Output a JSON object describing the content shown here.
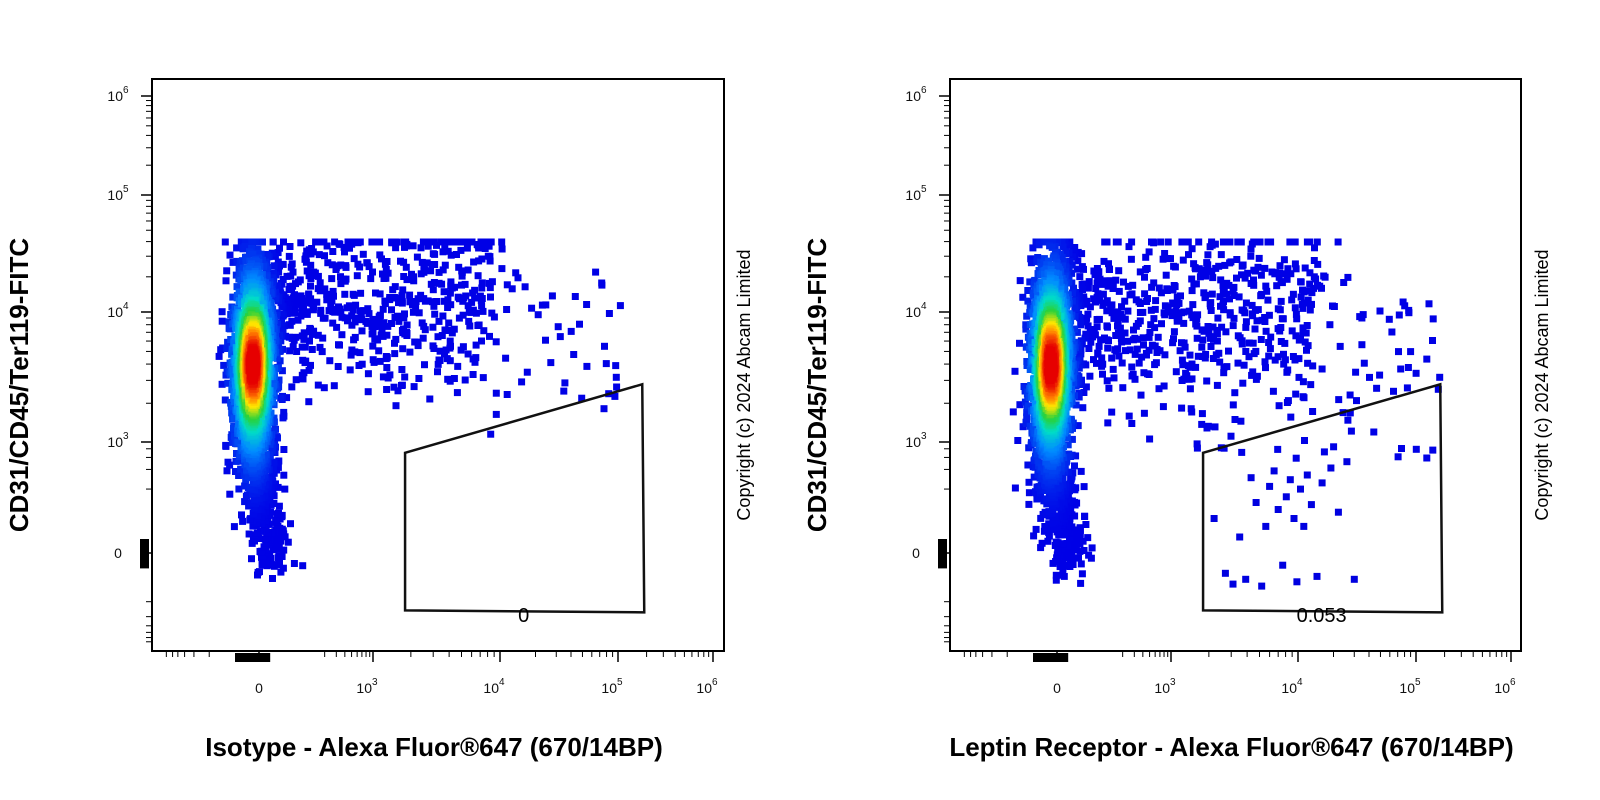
{
  "chart_data": [
    {
      "type": "scatter",
      "plot_kind": "flow cytometry density dot plot",
      "xlabel": "Isotype - Alexa Fluor®647 (670/14BP)",
      "ylabel": "CD31/CD45/Ter119-FITC",
      "x_scale": "biexponential",
      "y_scale": "biexponential",
      "x_ticks": [
        {
          "base": "0",
          "exp": ""
        },
        {
          "base": "10",
          "exp": "3"
        },
        {
          "base": "10",
          "exp": "4"
        },
        {
          "base": "10",
          "exp": "5"
        },
        {
          "base": "10",
          "exp": "6"
        }
      ],
      "y_ticks": [
        {
          "base": "0",
          "exp": ""
        },
        {
          "base": "10",
          "exp": "3"
        },
        {
          "base": "10",
          "exp": "4"
        },
        {
          "base": "10",
          "exp": "5"
        },
        {
          "base": "10",
          "exp": "6"
        }
      ],
      "gate": {
        "shape": "trapezoid",
        "value": "0",
        "x_range": [
          1800,
          180000
        ],
        "y_bottom": -300,
        "y_top_left": 700,
        "y_top_right": 2800
      },
      "events_in_gate": [],
      "copyright": "Copyright (c) 2024 Abcam Limited",
      "grid": false,
      "legend": "none"
    },
    {
      "type": "scatter",
      "plot_kind": "flow cytometry density dot plot",
      "xlabel": "Leptin Receptor - Alexa Fluor®647 (670/14BP)",
      "ylabel": "CD31/CD45/Ter119-FITC",
      "x_scale": "biexponential",
      "y_scale": "biexponential",
      "x_ticks": [
        {
          "base": "0",
          "exp": ""
        },
        {
          "base": "10",
          "exp": "3"
        },
        {
          "base": "10",
          "exp": "4"
        },
        {
          "base": "10",
          "exp": "5"
        },
        {
          "base": "10",
          "exp": "6"
        }
      ],
      "y_ticks": [
        {
          "base": "0",
          "exp": ""
        },
        {
          "base": "10",
          "exp": "3"
        },
        {
          "base": "10",
          "exp": "4"
        },
        {
          "base": "10",
          "exp": "5"
        },
        {
          "base": "10",
          "exp": "6"
        }
      ],
      "gate": {
        "shape": "trapezoid",
        "value": "0.053",
        "x_range": [
          1800,
          180000
        ],
        "y_bottom": -300,
        "y_top_left": 700,
        "y_top_right": 2800
      },
      "events_in_gate": [
        [
          2200,
          60
        ],
        [
          2700,
          -40
        ],
        [
          3100,
          -80
        ],
        [
          3500,
          20
        ],
        [
          3900,
          -60
        ],
        [
          4300,
          300
        ],
        [
          4700,
          120
        ],
        [
          5200,
          -90
        ],
        [
          5600,
          40
        ],
        [
          6000,
          220
        ],
        [
          6500,
          380
        ],
        [
          7000,
          90
        ],
        [
          7600,
          -20
        ],
        [
          8100,
          150
        ],
        [
          8700,
          280
        ],
        [
          9300,
          60
        ],
        [
          9800,
          -70
        ],
        [
          10500,
          200
        ],
        [
          11200,
          40
        ],
        [
          12000,
          330
        ],
        [
          13000,
          110
        ],
        [
          14500,
          -50
        ],
        [
          16000,
          250
        ],
        [
          19000,
          420
        ],
        [
          22000,
          80
        ],
        [
          26000,
          520
        ],
        [
          30000,
          -60
        ]
      ],
      "copyright": "Copyright (c) 2024 Abcam Limited",
      "grid": false,
      "legend": "none"
    }
  ]
}
